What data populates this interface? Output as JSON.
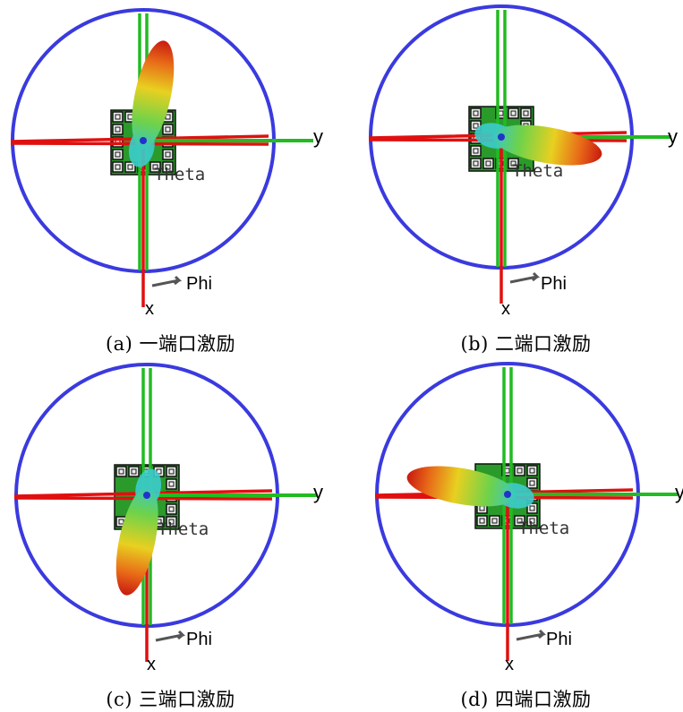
{
  "panels": [
    {
      "id": "a",
      "caption": "(a)  一端口激励",
      "port": 1,
      "lobe_direction": "up"
    },
    {
      "id": "b",
      "caption": "(b)  二端口激励",
      "port": 2,
      "lobe_direction": "right"
    },
    {
      "id": "c",
      "caption": "(c)  三端口激励",
      "port": 3,
      "lobe_direction": "down"
    },
    {
      "id": "d",
      "caption": "(d)  四端口激励",
      "port": 4,
      "lobe_direction": "left"
    }
  ],
  "labels": {
    "y_axis": "y",
    "x_axis": "x",
    "phi": "Phi",
    "theta": "Theta"
  },
  "colors": {
    "circle": "#3a3adf",
    "x_axis": "#e01010",
    "y_axis": "#22bb22",
    "array": "#2a9a2a"
  }
}
